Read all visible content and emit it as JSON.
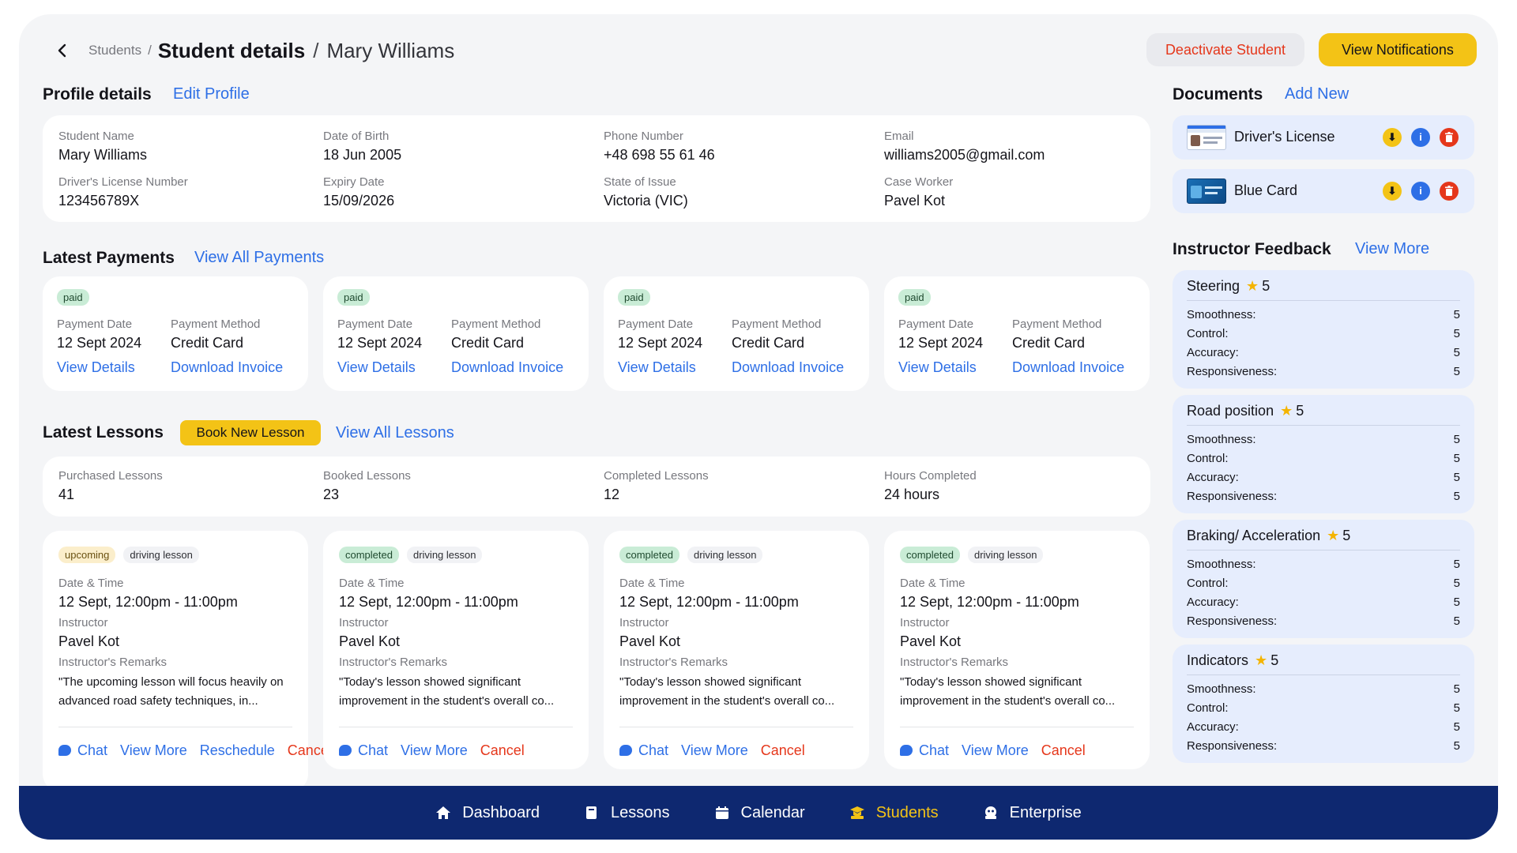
{
  "header": {
    "breadcrumb_parent": "Students",
    "title": "Student details",
    "subtitle": "Mary Williams",
    "deactivate_label": "Deactivate Student",
    "notifications_label": "View Notifications"
  },
  "profile": {
    "title": "Profile details",
    "edit_label": "Edit Profile",
    "fields": [
      {
        "label": "Student Name",
        "value": "Mary Williams"
      },
      {
        "label": "Date of Birth",
        "value": "18 Jun 2005"
      },
      {
        "label": "Phone Number",
        "value": "+48 698 55 61 46"
      },
      {
        "label": "Email",
        "value": "williams2005@gmail.com"
      },
      {
        "label": "Driver's License Number",
        "value": "123456789X"
      },
      {
        "label": "Expiry Date",
        "value": "15/09/2026"
      },
      {
        "label": "State of Issue",
        "value": "Victoria (VIC)"
      },
      {
        "label": "Case Worker",
        "value": "Pavel Kot"
      }
    ]
  },
  "payments": {
    "title": "Latest Payments",
    "view_all_label": "View All Payments",
    "date_label": "Payment Date",
    "method_label": "Payment Method",
    "details_label": "View Details",
    "invoice_label": "Download Invoice",
    "items": [
      {
        "status": "paid",
        "date": "12 Sept 2024",
        "method": "Credit Card"
      },
      {
        "status": "paid",
        "date": "12 Sept 2024",
        "method": "Credit Card"
      },
      {
        "status": "paid",
        "date": "12 Sept 2024",
        "method": "Credit Card"
      },
      {
        "status": "paid",
        "date": "12 Sept 2024",
        "method": "Credit Card"
      }
    ]
  },
  "lessons": {
    "title": "Latest Lessons",
    "book_label": "Book New Lesson",
    "view_all_label": "View All Lessons",
    "stats": [
      {
        "label": "Purchased Lessons",
        "value": "41"
      },
      {
        "label": "Booked Lessons",
        "value": "23"
      },
      {
        "label": "Completed Lessons",
        "value": "12"
      },
      {
        "label": "Hours Completed",
        "value": "24 hours"
      }
    ],
    "datetime_label": "Date & Time",
    "instructor_label": "Instructor",
    "remarks_label": "Instructor's Remarks",
    "chat_label": "Chat",
    "view_more_label": "View More",
    "reschedule_label": "Reschedule",
    "cancel_label": "Cancel",
    "items": [
      {
        "status": "upcoming",
        "type": "driving lesson",
        "datetime": "12 Sept, 12:00pm - 11:00pm",
        "instructor": "Pavel Kot",
        "remarks": "\"The upcoming lesson will focus heavily on advanced road safety techniques, in..."
      },
      {
        "status": "completed",
        "type": "driving lesson",
        "datetime": "12 Sept, 12:00pm - 11:00pm",
        "instructor": "Pavel Kot",
        "remarks": "\"Today's lesson showed significant improvement in the student's overall co..."
      },
      {
        "status": "completed",
        "type": "driving lesson",
        "datetime": "12 Sept, 12:00pm - 11:00pm",
        "instructor": "Pavel Kot",
        "remarks": "\"Today's lesson showed significant improvement in the student's overall co..."
      },
      {
        "status": "completed",
        "type": "driving lesson",
        "datetime": "12 Sept, 12:00pm - 11:00pm",
        "instructor": "Pavel Kot",
        "remarks": "\"Today's lesson showed significant improvement in the student's overall co..."
      }
    ]
  },
  "documents": {
    "title": "Documents",
    "add_label": "Add New",
    "items": [
      {
        "name": "Driver's License"
      },
      {
        "name": "Blue Card"
      }
    ]
  },
  "feedback": {
    "title": "Instructor Feedback",
    "view_more_label": "View More",
    "row_labels": [
      "Smoothness:",
      "Control:",
      "Accuracy:",
      "Responsiveness:"
    ],
    "items": [
      {
        "name": "Steering",
        "rating": "5",
        "scores": [
          "5",
          "5",
          "5",
          "5"
        ]
      },
      {
        "name": "Road position",
        "rating": "5",
        "scores": [
          "5",
          "5",
          "5",
          "5"
        ]
      },
      {
        "name": "Braking/ Acceleration",
        "rating": "5",
        "scores": [
          "5",
          "5",
          "5",
          "5"
        ]
      },
      {
        "name": "Indicators",
        "rating": "5",
        "scores": [
          "5",
          "5",
          "5",
          "5"
        ]
      }
    ]
  },
  "nav": {
    "items": [
      {
        "label": "Dashboard",
        "icon": "home-icon"
      },
      {
        "label": "Lessons",
        "icon": "book-icon"
      },
      {
        "label": "Calendar",
        "icon": "calendar-icon"
      },
      {
        "label": "Students",
        "icon": "graduation-cap-icon",
        "active": true
      },
      {
        "label": "Enterprise",
        "icon": "enterprise-icon"
      }
    ]
  },
  "colors": {
    "accent": "#2e6fe6",
    "brand_yellow": "#f3c316",
    "danger": "#e5371b",
    "nav_bg": "#0e2870"
  }
}
